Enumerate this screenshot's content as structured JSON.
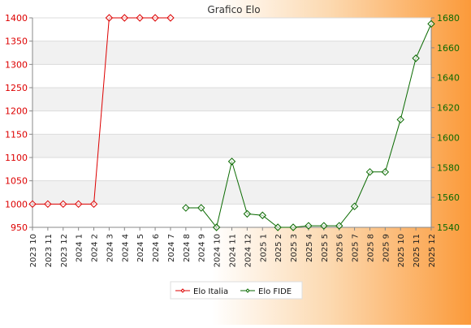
{
  "chart_data": {
    "type": "line",
    "title": "Grafico Elo",
    "categories": [
      "2023 10",
      "2023 11",
      "2023 12",
      "2024 1",
      "2024 2",
      "2024 3",
      "2024 4",
      "2024 5",
      "2024 6",
      "2024 7",
      "2024 8",
      "2024 9",
      "2024 10",
      "2024 11",
      "2024 12",
      "2025 1",
      "2025 2",
      "2025 3",
      "2025 4",
      "2025 5",
      "2025 6",
      "2025 7",
      "2025 8",
      "2025 9",
      "2025 10",
      "2025 11",
      "2025 12"
    ],
    "left_axis": {
      "ylim": [
        950,
        1400
      ],
      "ticks": [
        950,
        1000,
        1050,
        1100,
        1150,
        1200,
        1250,
        1300,
        1350,
        1400
      ],
      "color": "#dd0000"
    },
    "right_axis": {
      "ylim": [
        1540,
        1680
      ],
      "ticks": [
        1540,
        1560,
        1580,
        1600,
        1620,
        1640,
        1660,
        1680
      ],
      "color": "#0a6a00"
    },
    "series": [
      {
        "name": "Elo Italia",
        "axis": "left",
        "color": "#dd0000",
        "values": [
          1000,
          1000,
          1000,
          1000,
          1000,
          1400,
          1400,
          1400,
          1400,
          1400,
          null,
          null,
          null,
          null,
          null,
          null,
          null,
          null,
          null,
          null,
          null,
          null,
          null,
          null,
          null,
          null,
          null
        ]
      },
      {
        "name": "Elo FIDE",
        "axis": "right",
        "color": "#0a6a00",
        "values": [
          null,
          null,
          null,
          null,
          null,
          null,
          null,
          null,
          null,
          null,
          1553,
          1553,
          1540,
          1584,
          1549,
          1548,
          1540,
          1540,
          1541,
          1541,
          1541,
          1554,
          1577,
          1577,
          1612,
          1653,
          1676
        ]
      }
    ],
    "grid": true,
    "legend": "bottom"
  }
}
